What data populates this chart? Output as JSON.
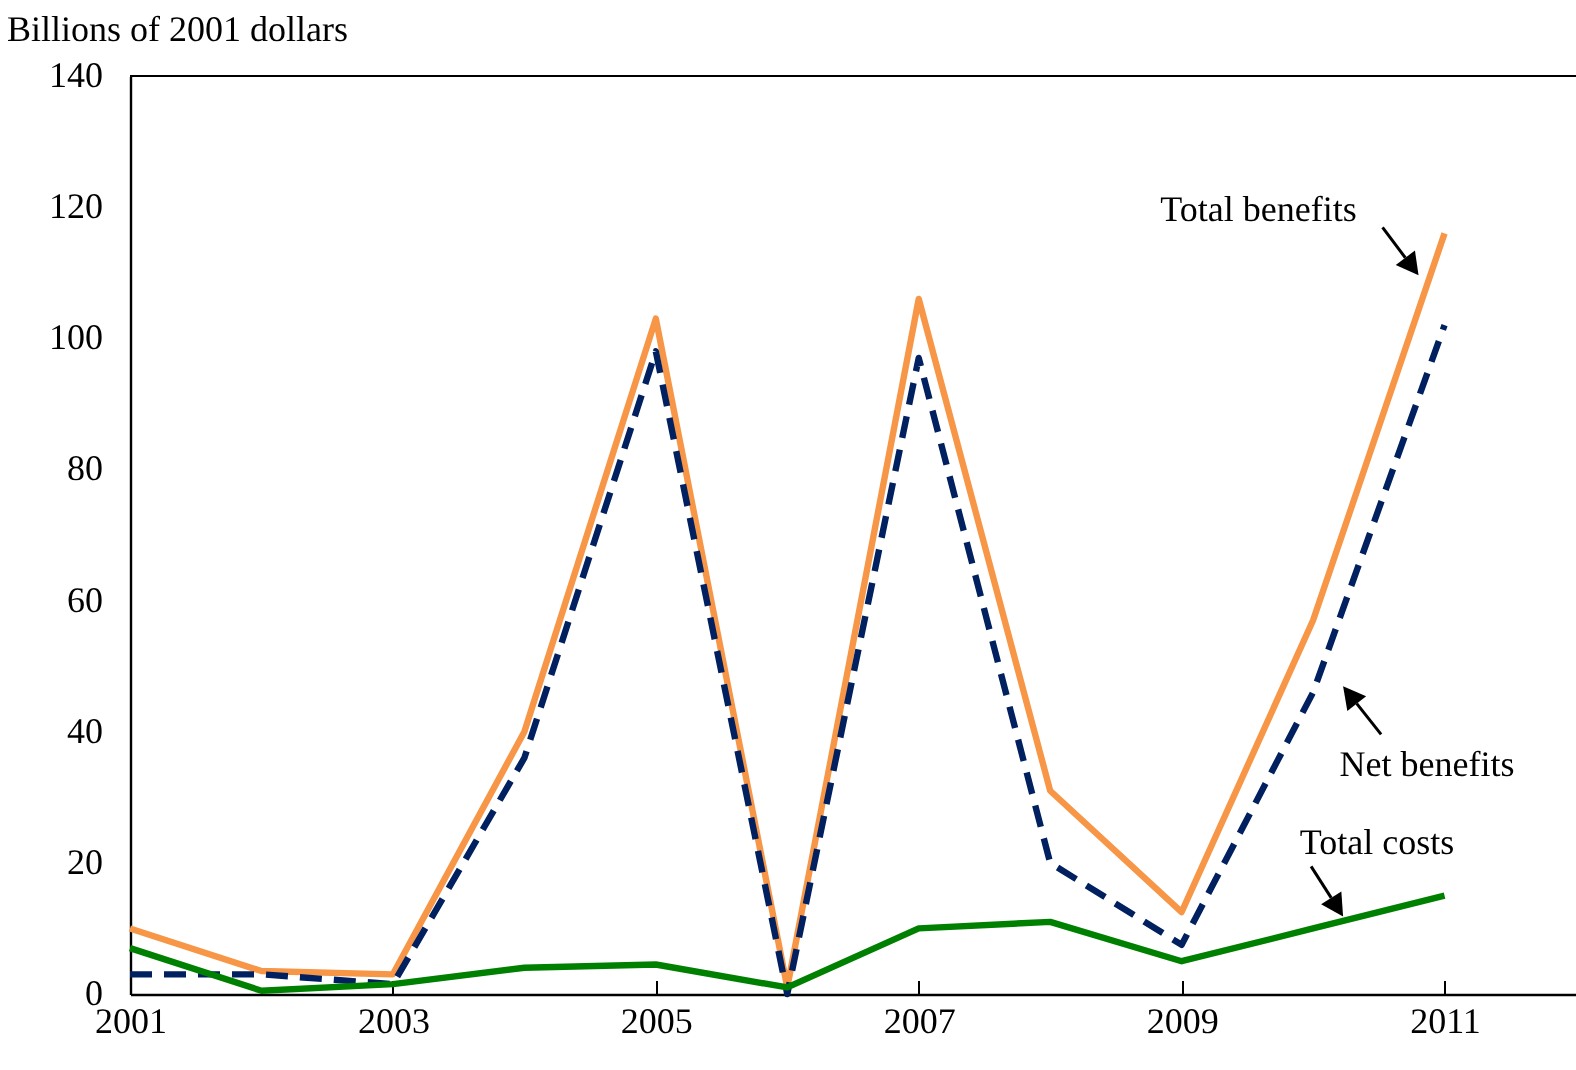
{
  "chart_data": {
    "type": "line",
    "ylabel": "Billions of 2001 dollars",
    "x": [
      2001,
      2002,
      2003,
      2004,
      2005,
      2006,
      2007,
      2008,
      2009,
      2010,
      2011
    ],
    "series": [
      {
        "name": "Total benefits",
        "color": "#f79646",
        "line_style": "solid",
        "values": [
          10,
          3.5,
          3,
          40,
          103,
          1,
          106,
          31,
          12.5,
          57,
          116
        ]
      },
      {
        "name": "Net benefits",
        "color": "#002060",
        "line_style": "dashed",
        "values": [
          3,
          3,
          1.5,
          36,
          98,
          0,
          97,
          20,
          7.5,
          46,
          102
        ]
      },
      {
        "name": "Total costs",
        "color": "#008000",
        "line_style": "solid",
        "values": [
          7,
          0.5,
          1.5,
          4,
          4.5,
          1,
          10,
          11,
          5,
          10,
          15
        ]
      }
    ],
    "xlim": [
      2001,
      2012
    ],
    "xticks": [
      2001,
      2003,
      2005,
      2007,
      2009,
      2011
    ],
    "ylim": [
      0,
      140
    ],
    "yticks": [
      0,
      20,
      40,
      60,
      80,
      100,
      120,
      140
    ],
    "grid": false,
    "marker": "none"
  }
}
